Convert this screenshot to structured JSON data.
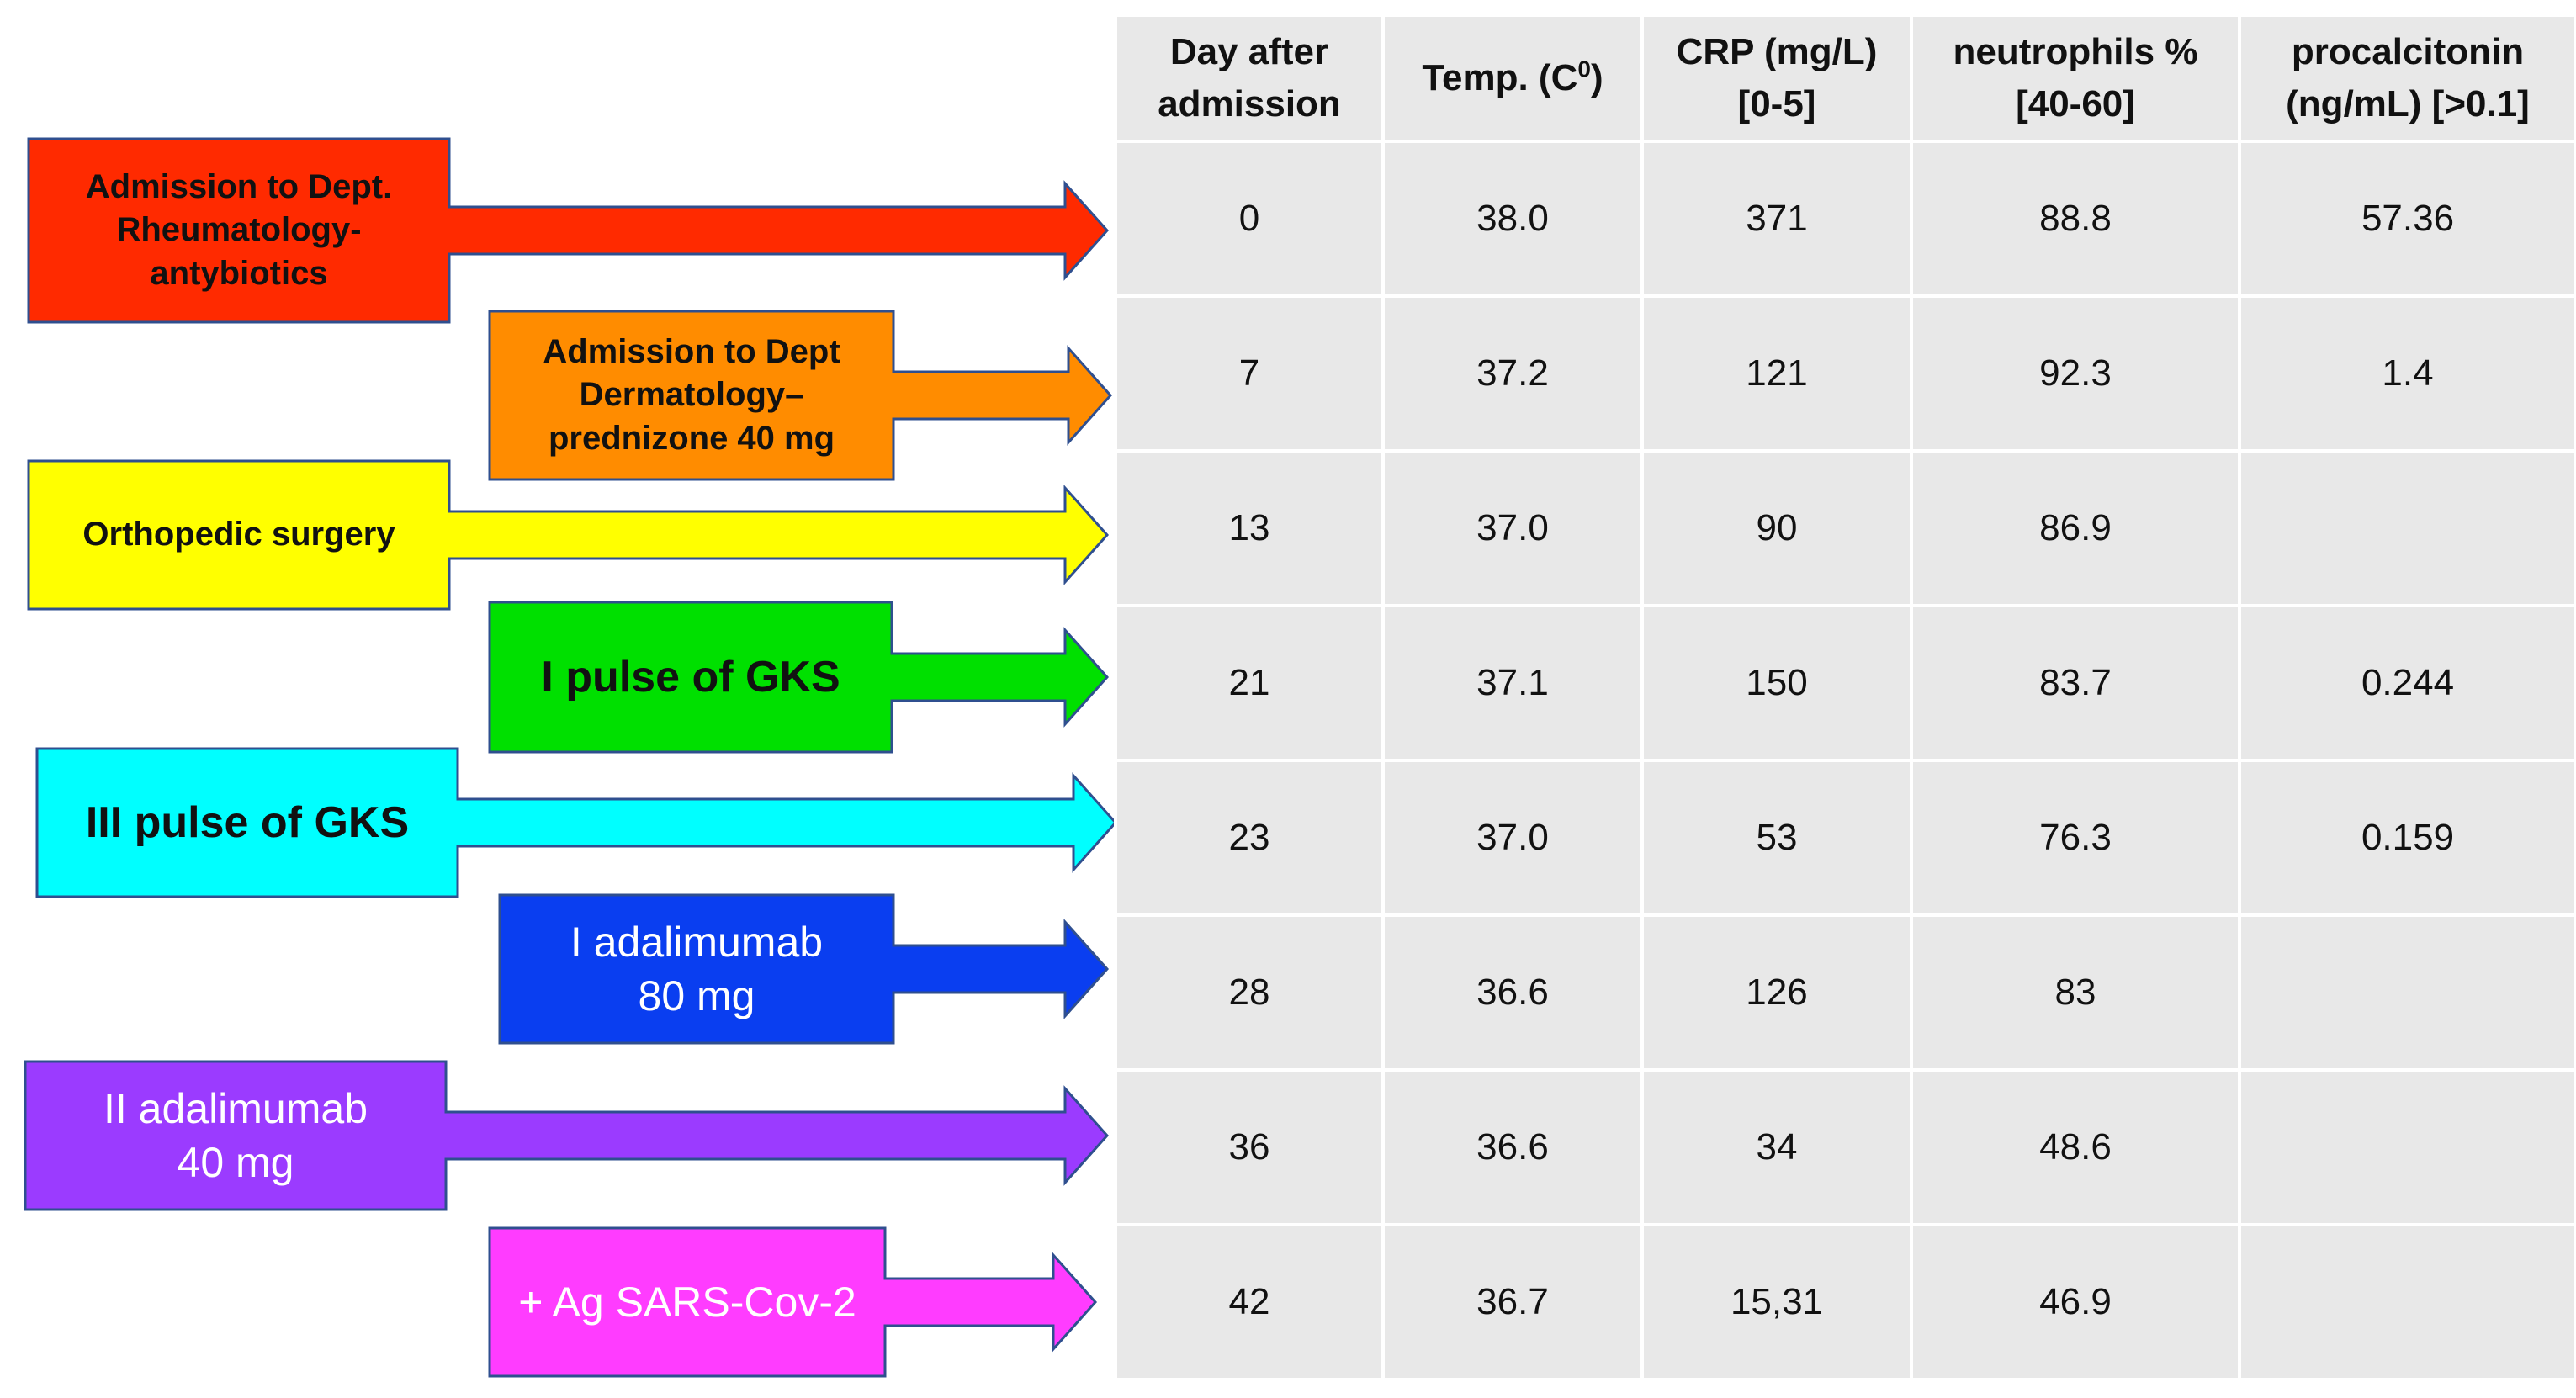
{
  "events": [
    {
      "lines": [
        "Admission to Dept.",
        "Rheumatology-",
        "antybiotics"
      ],
      "fill": "#ff2a00",
      "text_color": "#111111"
    },
    {
      "lines": [
        "Admission to Dept",
        "Dermatology–",
        "prednizone 40 mg"
      ],
      "fill": "#ff8c00",
      "text_color": "#111111"
    },
    {
      "lines": [
        "Orthopedic surgery"
      ],
      "fill": "#ffff00",
      "text_color": "#111111"
    },
    {
      "lines": [
        "I pulse of GKS"
      ],
      "fill": "#00e000",
      "text_color": "#111111"
    },
    {
      "lines": [
        "III pulse of GKS"
      ],
      "fill": "#00ffff",
      "text_color": "#111111"
    },
    {
      "lines": [
        "I adalimumab",
        "80 mg"
      ],
      "fill": "#0a3ef0",
      "text_color": "#ffffff"
    },
    {
      "lines": [
        "II adalimumab",
        "40 mg"
      ],
      "fill": "#9b3bff",
      "text_color": "#ffffff"
    },
    {
      "lines": [
        "+ Ag SARS-Cov-2"
      ],
      "fill": "#ff3cff",
      "text_color": "#ffffff"
    }
  ],
  "table": {
    "headers": [
      {
        "line1": "Day after",
        "line2": "admission"
      },
      {
        "line1": "Temp. (C",
        "sup": "0",
        "line1_end": ")"
      },
      {
        "line1": "CRP (mg/L)",
        "line2": "[0-5]"
      },
      {
        "line1": "neutrophils %",
        "line2": "[40-60]"
      },
      {
        "line1": "procalcitonin",
        "line2": "(ng/mL) [>0.1]"
      }
    ],
    "rows": [
      [
        "0",
        "38.0",
        "371",
        "88.8",
        "57.36"
      ],
      [
        "7",
        "37.2",
        "121",
        "92.3",
        "1.4"
      ],
      [
        "13",
        "37.0",
        "90",
        "86.9",
        ""
      ],
      [
        "21",
        "37.1",
        "150",
        "83.7",
        "0.244"
      ],
      [
        "23",
        "37.0",
        "53",
        "76.3",
        "0.159"
      ],
      [
        "28",
        "36.6",
        "126",
        "83",
        ""
      ],
      [
        "36",
        "36.6",
        "34",
        "48.6",
        ""
      ],
      [
        "42",
        "36.7",
        "15,31",
        "46.9",
        ""
      ]
    ]
  }
}
